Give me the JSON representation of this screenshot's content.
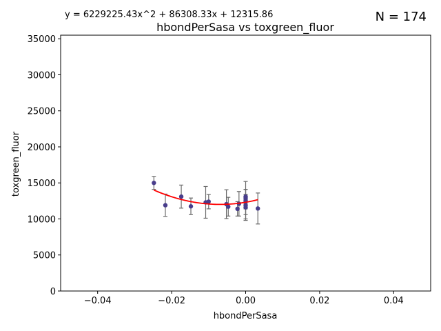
{
  "chart_data": {
    "type": "scatter",
    "title": "hbondPerSasa vs toxgreen_fluor",
    "equation": "y = 6229225.43x^2 + 86308.33x + 12315.86",
    "n_label": "N = 174",
    "xlabel": "hbondPerSasa",
    "ylabel": "toxgreen_fluor",
    "xlim": [
      -0.05,
      0.05
    ],
    "ylim": [
      0,
      35500
    ],
    "xticks": [
      -0.04,
      -0.02,
      0.0,
      0.02,
      0.04
    ],
    "xtick_labels": [
      "−0.04",
      "−0.02",
      "0.00",
      "0.02",
      "0.04"
    ],
    "yticks": [
      0,
      5000,
      10000,
      15000,
      20000,
      25000,
      30000,
      35000
    ],
    "ytick_labels": [
      "0",
      "5000",
      "10000",
      "15000",
      "20000",
      "25000",
      "30000",
      "35000"
    ],
    "grid": false,
    "colors": {
      "points": "#483d8b",
      "fit": "#ff0000",
      "errorbars": "#696969"
    },
    "fit": {
      "a": 6229225.43,
      "b": 86308.33,
      "c": 12315.86
    },
    "points": [
      {
        "x": -0.0248,
        "y": 15000,
        "err": 900
      },
      {
        "x": -0.0217,
        "y": 11900,
        "err": 1550
      },
      {
        "x": -0.0174,
        "y": 13100,
        "err": 1600
      },
      {
        "x": -0.0148,
        "y": 11750,
        "err": 1150
      },
      {
        "x": -0.0108,
        "y": 12300,
        "err": 2200
      },
      {
        "x": -0.01,
        "y": 12400,
        "err": 1000
      },
      {
        "x": -0.0052,
        "y": 12050,
        "err": 2000
      },
      {
        "x": -0.0047,
        "y": 11700,
        "err": 1300
      },
      {
        "x": -0.0022,
        "y": 11400,
        "err": 1000
      },
      {
        "x": -0.0018,
        "y": 12100,
        "err": 1700
      },
      {
        "x": 0.0,
        "y": 12900,
        "err": 1200
      },
      {
        "x": 0.0,
        "y": 12400,
        "err": 1000
      },
      {
        "x": 0.0,
        "y": 11900,
        "err": 1300
      },
      {
        "x": 0.0,
        "y": 13100,
        "err": 1000
      },
      {
        "x": 0.0,
        "y": 11600,
        "err": 1800
      },
      {
        "x": 0.0,
        "y": 12600,
        "err": 2600
      },
      {
        "x": 0.0033,
        "y": 11450,
        "err": 2150
      }
    ]
  }
}
